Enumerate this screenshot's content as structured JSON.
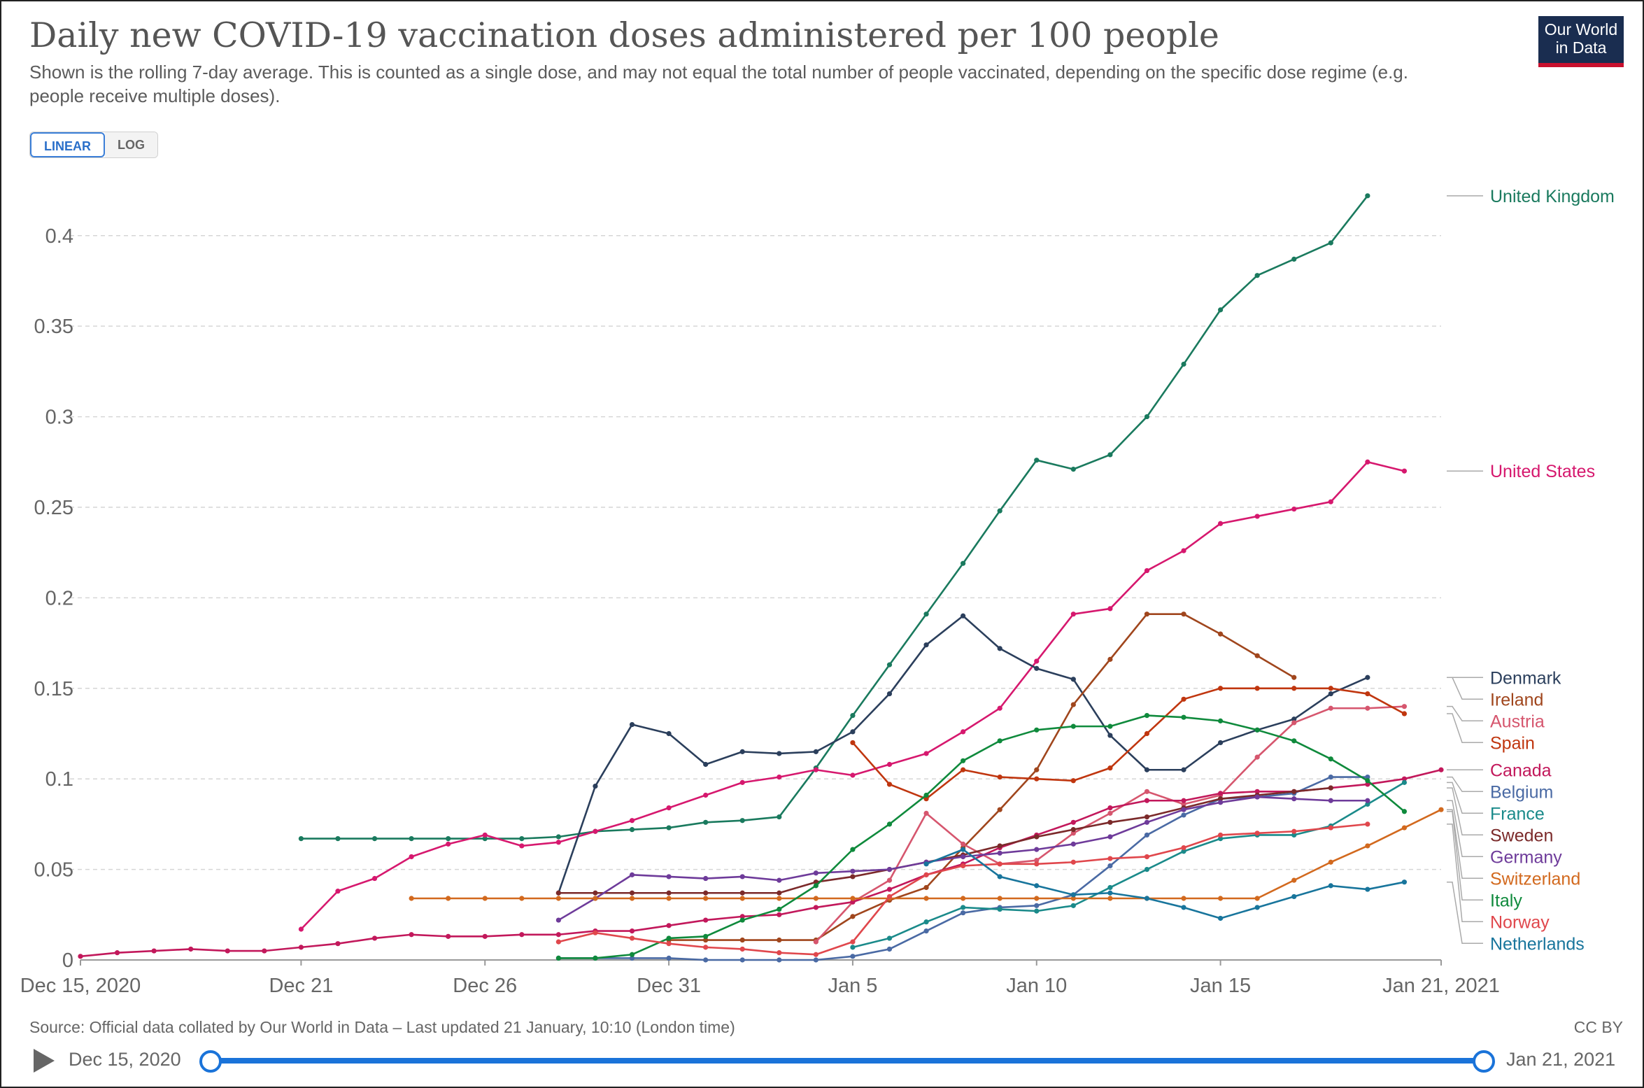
{
  "header": {
    "title": "Daily new COVID-19 vaccination doses administered per 100 people",
    "subtitle": "Shown is the rolling 7-day average. This is counted as a single dose, and may not equal the total number of people vaccinated, depending on the specific dose regime (e.g. people receive multiple doses).",
    "logo_line1": "Our World",
    "logo_line2": "in Data"
  },
  "controls": {
    "linear_label": "LINEAR",
    "log_label": "LOG",
    "selected": "LINEAR"
  },
  "footer": {
    "source": "Source: Official data collated by Our World in Data – Last updated 21 January, 10:10 (London time)",
    "license": "CC BY",
    "timeline_start": "Dec 15, 2020",
    "timeline_end": "Jan 21, 2021"
  },
  "colors": {
    "accent": "#1a73d9",
    "logo_bg": "#1a2d50",
    "logo_bar": "#c8102e"
  },
  "chart_data": {
    "type": "line",
    "xlabel": "",
    "ylabel": "",
    "x_start": "2020-12-15",
    "x_end": "2021-01-21",
    "ylim": [
      0,
      0.42
    ],
    "yticks": [
      0,
      0.05,
      0.1,
      0.15,
      0.2,
      0.25,
      0.3,
      0.35,
      0.4
    ],
    "ytick_labels": [
      "0",
      "0.05",
      "0.1",
      "0.15",
      "0.2",
      "0.25",
      "0.3",
      "0.35",
      "0.4"
    ],
    "xticks": [
      {
        "date": "2020-12-15",
        "label": "Dec 15, 2020"
      },
      {
        "date": "2020-12-21",
        "label": "Dec 21"
      },
      {
        "date": "2020-12-26",
        "label": "Dec 26"
      },
      {
        "date": "2020-12-31",
        "label": "Dec 31"
      },
      {
        "date": "2021-01-05",
        "label": "Jan 5"
      },
      {
        "date": "2021-01-10",
        "label": "Jan 10"
      },
      {
        "date": "2021-01-15",
        "label": "Jan 15"
      },
      {
        "date": "2021-01-21",
        "label": "Jan 21, 2021"
      }
    ],
    "grid": "horizontal dashed",
    "legend_placement": "right, labels at line ends",
    "series": [
      {
        "name": "United Kingdom",
        "color": "#1a7a5e",
        "start": "2020-12-21",
        "values": [
          0.067,
          0.067,
          0.067,
          0.067,
          0.067,
          0.067,
          0.067,
          0.068,
          0.071,
          0.072,
          0.073,
          0.076,
          0.077,
          0.079,
          0.106,
          0.135,
          0.163,
          0.191,
          0.219,
          0.248,
          0.276,
          0.271,
          0.279,
          0.3,
          0.329,
          0.359,
          0.378,
          0.387,
          0.396,
          0.422
        ]
      },
      {
        "name": "United States",
        "color": "#d6186e",
        "start": "2020-12-21",
        "values": [
          0.017,
          0.038,
          0.045,
          0.057,
          0.064,
          0.069,
          0.063,
          0.065,
          0.071,
          0.077,
          0.084,
          0.091,
          0.098,
          0.101,
          0.105,
          0.102,
          0.108,
          0.114,
          0.126,
          0.139,
          0.165,
          0.191,
          0.194,
          0.215,
          0.226,
          0.241,
          0.245,
          0.249,
          0.253,
          0.275,
          0.27
        ]
      },
      {
        "name": "Denmark",
        "color": "#2b3f5c",
        "start": "2020-12-28",
        "values": [
          0.037,
          0.096,
          0.13,
          0.125,
          0.108,
          0.115,
          0.114,
          0.115,
          0.126,
          0.147,
          0.174,
          0.19,
          0.172,
          0.161,
          0.155,
          0.124,
          0.105,
          0.105,
          0.12,
          0.127,
          0.133,
          0.147,
          0.156
        ]
      },
      {
        "name": "Ireland",
        "color": "#a0461d",
        "start": "2020-12-31",
        "values": [
          0.011,
          0.011,
          0.011,
          0.011,
          0.011,
          0.024,
          0.033,
          0.04,
          0.062,
          0.083,
          0.105,
          0.141,
          0.166,
          0.191,
          0.191,
          0.18,
          0.168,
          0.156
        ]
      },
      {
        "name": "Austria",
        "color": "#d6566e",
        "start": "2021-01-04",
        "values": [
          0.01,
          0.032,
          0.044,
          0.081,
          0.064,
          0.053,
          0.055,
          0.07,
          0.081,
          0.093,
          0.086,
          0.091,
          0.112,
          0.131,
          0.139,
          0.139,
          0.14
        ]
      },
      {
        "name": "Spain",
        "color": "#c0360f",
        "start": "2021-01-05",
        "values": [
          0.12,
          0.097,
          0.089,
          0.105,
          0.101,
          0.1,
          0.099,
          0.106,
          0.125,
          0.144,
          0.15,
          0.15,
          0.15,
          0.15,
          0.147,
          0.136
        ]
      },
      {
        "name": "Canada",
        "color": "#c2185b",
        "start": "2020-12-15",
        "values": [
          0.002,
          0.004,
          0.005,
          0.006,
          0.005,
          0.005,
          0.007,
          0.009,
          0.012,
          0.014,
          0.013,
          0.013,
          0.014,
          0.014,
          0.016,
          0.016,
          0.019,
          0.022,
          0.024,
          0.025,
          0.029,
          0.032,
          0.039,
          0.047,
          0.053,
          0.062,
          0.069,
          0.076,
          0.084,
          0.088,
          0.088,
          0.092,
          0.093,
          0.093,
          0.095,
          0.097,
          0.1,
          0.105
        ]
      },
      {
        "name": "Belgium",
        "color": "#4a6aa4",
        "start": "2020-12-28",
        "values": [
          0.001,
          0.001,
          0.001,
          0.001,
          0.0,
          0.0,
          0.0,
          0.0,
          0.002,
          0.006,
          0.016,
          0.026,
          0.029,
          0.03,
          0.036,
          0.052,
          0.069,
          0.08,
          0.089,
          0.09,
          0.092,
          0.101,
          0.101
        ]
      },
      {
        "name": "France",
        "color": "#1a8a8a",
        "start": "2021-01-05",
        "values": [
          0.007,
          0.012,
          0.021,
          0.029,
          0.028,
          0.027,
          0.03,
          0.04,
          0.05,
          0.06,
          0.067,
          0.069,
          0.069,
          0.074,
          0.086,
          0.098
        ]
      },
      {
        "name": "Sweden",
        "color": "#7b2a2a",
        "start": "2020-12-28",
        "values": [
          0.037,
          0.037,
          0.037,
          0.037,
          0.037,
          0.037,
          0.037,
          0.043,
          0.046,
          0.05,
          0.054,
          0.058,
          0.063,
          0.068,
          0.072,
          0.076,
          0.079,
          0.084,
          0.089,
          0.091,
          0.093,
          0.095
        ]
      },
      {
        "name": "Germany",
        "color": "#6e3b9a",
        "start": "2020-12-28",
        "values": [
          0.022,
          0.034,
          0.047,
          0.046,
          0.045,
          0.046,
          0.044,
          0.048,
          0.049,
          0.05,
          0.054,
          0.057,
          0.059,
          0.061,
          0.064,
          0.068,
          0.076,
          0.083,
          0.087,
          0.09,
          0.089,
          0.088,
          0.088
        ]
      },
      {
        "name": "Switzerland",
        "color": "#d2691e",
        "start": "2020-12-24",
        "values": [
          0.034,
          0.034,
          0.034,
          0.034,
          0.034,
          0.034,
          0.034,
          0.034,
          0.034,
          0.034,
          0.034,
          0.034,
          0.034,
          0.034,
          0.034,
          0.034,
          0.034,
          0.034,
          0.034,
          0.034,
          0.034,
          0.034,
          0.034,
          0.034,
          0.044,
          0.054,
          0.063,
          0.073,
          0.083
        ]
      },
      {
        "name": "Italy",
        "color": "#0f8a3c",
        "start": "2020-12-28",
        "values": [
          0.001,
          0.001,
          0.003,
          0.012,
          0.013,
          0.022,
          0.028,
          0.041,
          0.061,
          0.075,
          0.091,
          0.11,
          0.121,
          0.127,
          0.129,
          0.129,
          0.135,
          0.134,
          0.132,
          0.127,
          0.121,
          0.111,
          0.099,
          0.082
        ]
      },
      {
        "name": "Norway",
        "color": "#e0474c",
        "start": "2020-12-28",
        "values": [
          0.01,
          0.015,
          0.012,
          0.009,
          0.007,
          0.006,
          0.004,
          0.003,
          0.01,
          0.035,
          0.047,
          0.052,
          0.053,
          0.053,
          0.054,
          0.056,
          0.057,
          0.062,
          0.069,
          0.07,
          0.071,
          0.073,
          0.075
        ]
      },
      {
        "name": "Netherlands",
        "color": "#18759c",
        "start": "2021-01-07",
        "values": [
          0.053,
          0.061,
          0.046,
          0.041,
          0.036,
          0.037,
          0.034,
          0.029,
          0.023,
          0.029,
          0.035,
          0.041,
          0.039,
          0.043
        ]
      }
    ]
  }
}
